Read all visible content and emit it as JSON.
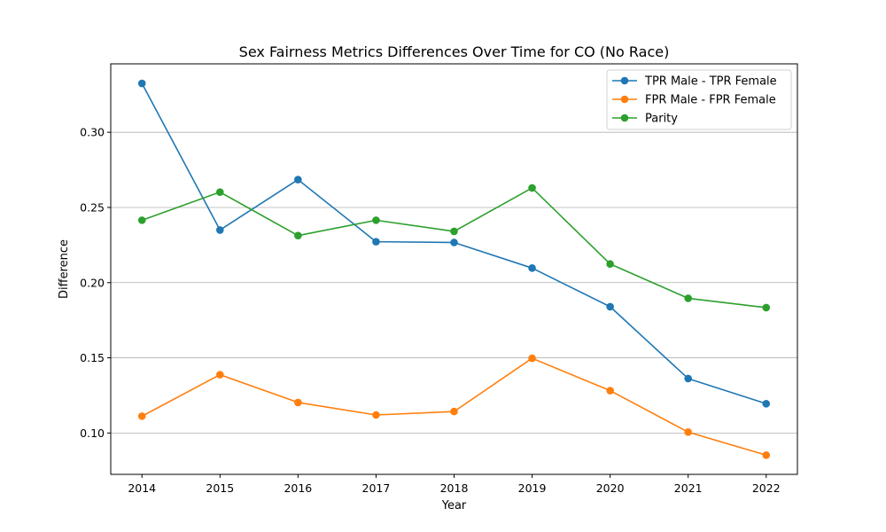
{
  "chart_data": {
    "type": "line",
    "title": "Sex Fairness Metrics Differences Over Time for CO (No Race)",
    "xlabel": "Year",
    "ylabel": "Difference",
    "x": [
      2014,
      2015,
      2016,
      2017,
      2018,
      2019,
      2020,
      2021,
      2022
    ],
    "x_tick_labels": [
      "2014",
      "2015",
      "2016",
      "2017",
      "2018",
      "2019",
      "2020",
      "2021",
      "2022"
    ],
    "y_ticks": [
      0.1,
      0.15,
      0.2,
      0.25,
      0.3
    ],
    "y_tick_labels": [
      "0.10",
      "0.15",
      "0.20",
      "0.25",
      "0.30"
    ],
    "xlim": [
      2013.6,
      2022.4
    ],
    "ylim": [
      0.0725,
      0.3455
    ],
    "grid": "y-major",
    "legend_position": "top-right",
    "series": [
      {
        "name": "TPR Male - TPR Female",
        "color": "#1f77b4",
        "values": [
          0.3325,
          0.235,
          0.2685,
          0.2272,
          0.2267,
          0.2097,
          0.184,
          0.1362,
          0.1195
        ]
      },
      {
        "name": "FPR Male - FPR Female",
        "color": "#ff7f0e",
        "values": [
          0.1112,
          0.1388,
          0.1203,
          0.112,
          0.1143,
          0.1497,
          0.1282,
          0.1006,
          0.0853
        ]
      },
      {
        "name": "Parity",
        "color": "#2ca02c",
        "values": [
          0.2415,
          0.2602,
          0.2313,
          0.2415,
          0.2341,
          0.263,
          0.2124,
          0.1896,
          0.1834
        ]
      }
    ]
  }
}
